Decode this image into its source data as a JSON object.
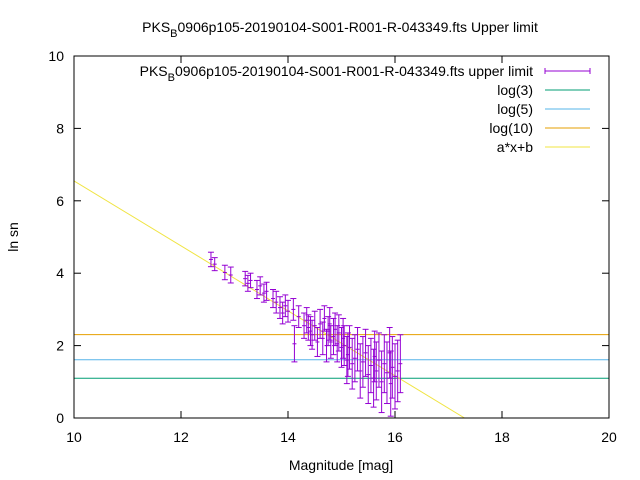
{
  "chart_data": {
    "type": "scatter",
    "title": {
      "pre": "PKS",
      "sub": "B",
      "post": "0906p105-20190104-S001-R001-R-043349.fts Upper limit"
    },
    "xlabel": "Magnitude [mag]",
    "ylabel": "ln sn",
    "xlim": [
      10,
      20
    ],
    "ylim": [
      0,
      10
    ],
    "xticks": [
      10,
      12,
      14,
      16,
      18,
      20
    ],
    "yticks": [
      0,
      2,
      4,
      6,
      8,
      10
    ],
    "grid": false,
    "legend_position": "top-right",
    "legend": [
      {
        "pre": "PKS",
        "sub": "B",
        "post": "0906p105-20190104-S001-R001-R-043349.fts upper limit",
        "color": "#9400d3",
        "style": "errorbar"
      },
      {
        "label": "log(3)",
        "color": "#009e73",
        "style": "line"
      },
      {
        "label": "log(5)",
        "color": "#56b4e9",
        "style": "line"
      },
      {
        "label": "log(10)",
        "color": "#e69f00",
        "style": "line"
      },
      {
        "label": "a*x+b",
        "color": "#f0e442",
        "style": "line"
      }
    ],
    "hlines": [
      {
        "name": "log(3)",
        "y": 1.0986,
        "color": "#009e73"
      },
      {
        "name": "log(5)",
        "y": 1.6094,
        "color": "#56b4e9"
      },
      {
        "name": "log(10)",
        "y": 2.3026,
        "color": "#e69f00"
      }
    ],
    "fit_line": {
      "name": "a*x+b",
      "x": [
        10,
        17.3
      ],
      "y": [
        6.55,
        0
      ],
      "color": "#f0e442"
    },
    "points": [
      {
        "x": 12.56,
        "y": 4.38,
        "err": 0.2
      },
      {
        "x": 12.63,
        "y": 4.25,
        "err": 0.18
      },
      {
        "x": 12.82,
        "y": 4.02,
        "err": 0.2
      },
      {
        "x": 12.93,
        "y": 3.95,
        "err": 0.22
      },
      {
        "x": 13.2,
        "y": 3.85,
        "err": 0.2
      },
      {
        "x": 13.25,
        "y": 3.72,
        "err": 0.22
      },
      {
        "x": 13.3,
        "y": 3.8,
        "err": 0.2
      },
      {
        "x": 13.42,
        "y": 3.55,
        "err": 0.25
      },
      {
        "x": 13.48,
        "y": 3.65,
        "err": 0.25
      },
      {
        "x": 13.55,
        "y": 3.45,
        "err": 0.25
      },
      {
        "x": 13.6,
        "y": 3.5,
        "err": 0.25
      },
      {
        "x": 13.72,
        "y": 3.3,
        "err": 0.25
      },
      {
        "x": 13.78,
        "y": 3.2,
        "err": 0.3
      },
      {
        "x": 13.85,
        "y": 3.05,
        "err": 0.3
      },
      {
        "x": 13.9,
        "y": 2.9,
        "err": 0.3
      },
      {
        "x": 13.95,
        "y": 3.1,
        "err": 0.3
      },
      {
        "x": 14.0,
        "y": 2.95,
        "err": 0.3
      },
      {
        "x": 14.1,
        "y": 3.0,
        "err": 0.3
      },
      {
        "x": 14.12,
        "y": 2.05,
        "err": 0.5
      },
      {
        "x": 14.2,
        "y": 2.8,
        "err": 0.3
      },
      {
        "x": 14.3,
        "y": 2.55,
        "err": 0.35
      },
      {
        "x": 14.35,
        "y": 2.7,
        "err": 0.35
      },
      {
        "x": 14.38,
        "y": 2.5,
        "err": 0.35
      },
      {
        "x": 14.42,
        "y": 2.4,
        "err": 0.4
      },
      {
        "x": 14.45,
        "y": 2.3,
        "err": 0.4
      },
      {
        "x": 14.5,
        "y": 2.55,
        "err": 0.4
      },
      {
        "x": 14.55,
        "y": 2.1,
        "err": 0.4
      },
      {
        "x": 14.6,
        "y": 2.6,
        "err": 0.4
      },
      {
        "x": 14.65,
        "y": 2.2,
        "err": 0.45
      },
      {
        "x": 14.68,
        "y": 2.75,
        "err": 0.35
      },
      {
        "x": 14.72,
        "y": 2.0,
        "err": 0.45
      },
      {
        "x": 14.75,
        "y": 2.4,
        "err": 0.4
      },
      {
        "x": 14.78,
        "y": 2.6,
        "err": 0.45
      },
      {
        "x": 14.8,
        "y": 2.1,
        "err": 0.45
      },
      {
        "x": 14.85,
        "y": 2.25,
        "err": 0.5
      },
      {
        "x": 14.88,
        "y": 2.45,
        "err": 0.45
      },
      {
        "x": 14.92,
        "y": 2.05,
        "err": 0.5
      },
      {
        "x": 14.95,
        "y": 2.35,
        "err": 0.5
      },
      {
        "x": 15.0,
        "y": 1.95,
        "err": 0.55
      },
      {
        "x": 15.03,
        "y": 2.2,
        "err": 0.55
      },
      {
        "x": 15.05,
        "y": 2.0,
        "err": 0.55
      },
      {
        "x": 15.1,
        "y": 1.6,
        "err": 0.65
      },
      {
        "x": 15.12,
        "y": 1.75,
        "err": 0.6
      },
      {
        "x": 15.15,
        "y": 1.95,
        "err": 0.6
      },
      {
        "x": 15.2,
        "y": 1.5,
        "err": 0.7
      },
      {
        "x": 15.25,
        "y": 1.65,
        "err": 0.65
      },
      {
        "x": 15.3,
        "y": 1.9,
        "err": 0.6
      },
      {
        "x": 15.35,
        "y": 1.3,
        "err": 0.75
      },
      {
        "x": 15.4,
        "y": 1.55,
        "err": 0.7
      },
      {
        "x": 15.45,
        "y": 1.8,
        "err": 0.65
      },
      {
        "x": 15.5,
        "y": 1.2,
        "err": 0.8
      },
      {
        "x": 15.55,
        "y": 1.45,
        "err": 0.75
      },
      {
        "x": 15.6,
        "y": 1.1,
        "err": 0.8
      },
      {
        "x": 15.62,
        "y": 1.7,
        "err": 0.7
      },
      {
        "x": 15.65,
        "y": 1.3,
        "err": 0.8
      },
      {
        "x": 15.7,
        "y": 1.6,
        "err": 0.75
      },
      {
        "x": 15.75,
        "y": 1.0,
        "err": 0.85
      },
      {
        "x": 15.8,
        "y": 1.5,
        "err": 0.8
      },
      {
        "x": 15.85,
        "y": 1.25,
        "err": 0.85
      },
      {
        "x": 15.9,
        "y": 1.8,
        "err": 0.7
      },
      {
        "x": 15.92,
        "y": 0.95,
        "err": 0.9
      },
      {
        "x": 15.95,
        "y": 1.4,
        "err": 0.85
      },
      {
        "x": 16.0,
        "y": 1.15,
        "err": 0.9
      },
      {
        "x": 16.05,
        "y": 1.3,
        "err": 0.85
      },
      {
        "x": 16.1,
        "y": 1.5,
        "err": 0.8
      }
    ]
  }
}
